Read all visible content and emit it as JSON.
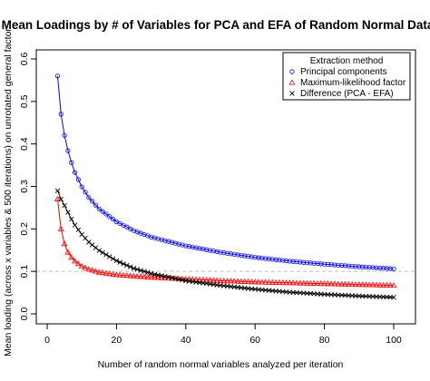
{
  "chart_data": {
    "type": "line",
    "title": "Mean Loadings by # of Variables for PCA and EFA of Random Normal Data",
    "xlabel": "Number of random normal variables analyzed per iteration",
    "ylabel": "Mean loading (across x variables & 500 iterations) on unrotated general factor",
    "xlim": [
      0,
      100
    ],
    "ylim": [
      0,
      0.6
    ],
    "x_ticks": [
      "0",
      "20",
      "40",
      "60",
      "80",
      "100"
    ],
    "y_ticks": [
      "0.0",
      "0.1",
      "0.2",
      "0.3",
      "0.4",
      "0.5",
      "0.6"
    ],
    "reference_line": {
      "y": 0.1,
      "style": "dashed",
      "color": "#c0c0c0"
    },
    "legend": {
      "title": "Extraction method",
      "position": "top-right"
    },
    "x_range": [
      3,
      100
    ],
    "series": [
      {
        "name": "Principal components",
        "color": "#0000ff",
        "marker": "circle",
        "points": [
          [
            3,
            0.56
          ],
          [
            4,
            0.47
          ],
          [
            5,
            0.42
          ],
          [
            6,
            0.384
          ],
          [
            7,
            0.356
          ],
          [
            8,
            0.333
          ],
          [
            10,
            0.299
          ],
          [
            12,
            0.274
          ],
          [
            15,
            0.247
          ],
          [
            20,
            0.217
          ],
          [
            25,
            0.196
          ],
          [
            30,
            0.181
          ],
          [
            40,
            0.16
          ],
          [
            50,
            0.145
          ],
          [
            60,
            0.133
          ],
          [
            70,
            0.124
          ],
          [
            80,
            0.117
          ],
          [
            90,
            0.111
          ],
          [
            100,
            0.106
          ]
        ]
      },
      {
        "name": "Maximum-likelihood factor",
        "color": "#ff0000",
        "marker": "triangle",
        "points": [
          [
            3,
            0.27
          ],
          [
            4,
            0.2
          ],
          [
            5,
            0.165
          ],
          [
            6,
            0.145
          ],
          [
            7,
            0.133
          ],
          [
            8,
            0.124
          ],
          [
            10,
            0.112
          ],
          [
            12,
            0.105
          ],
          [
            15,
            0.098
          ],
          [
            20,
            0.092
          ],
          [
            25,
            0.089
          ],
          [
            30,
            0.086
          ],
          [
            40,
            0.082
          ],
          [
            50,
            0.078
          ],
          [
            60,
            0.075
          ],
          [
            70,
            0.073
          ],
          [
            80,
            0.071
          ],
          [
            90,
            0.069
          ],
          [
            100,
            0.067
          ]
        ]
      },
      {
        "name": "Difference (PCA - EFA)",
        "color": "#000000",
        "marker": "x",
        "points": [
          [
            3,
            0.29
          ],
          [
            4,
            0.27
          ],
          [
            5,
            0.255
          ],
          [
            6,
            0.239
          ],
          [
            7,
            0.223
          ],
          [
            8,
            0.209
          ],
          [
            10,
            0.187
          ],
          [
            12,
            0.169
          ],
          [
            15,
            0.149
          ],
          [
            20,
            0.125
          ],
          [
            25,
            0.107
          ],
          [
            30,
            0.095
          ],
          [
            40,
            0.078
          ],
          [
            50,
            0.067
          ],
          [
            60,
            0.058
          ],
          [
            70,
            0.051
          ],
          [
            80,
            0.046
          ],
          [
            90,
            0.042
          ],
          [
            100,
            0.039
          ]
        ]
      }
    ]
  }
}
